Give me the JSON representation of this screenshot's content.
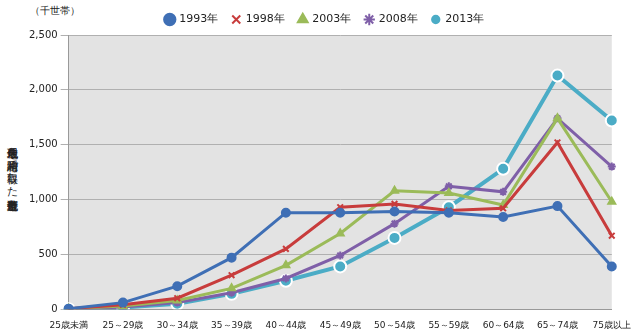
{
  "chart_data": {
    "type": "line",
    "y_label": "現住居敷地を相続・贈与で取得した土地所有世帯数",
    "annotation": "（千世帯）",
    "categories": [
      "25歳未満",
      "25～29歳",
      "30～34歳",
      "35～39歳",
      "40～44歳",
      "45～49歳",
      "50～54歳",
      "55～59歳",
      "60～64歳",
      "65～74歳",
      "75歳以上"
    ],
    "series": [
      {
        "name": "1993年",
        "color": "#3f6fb5",
        "marker": "circle",
        "values": [
          5,
          60,
          210,
          470,
          880,
          880,
          890,
          880,
          840,
          940,
          390
        ]
      },
      {
        "name": "1998年",
        "color": "#c83c3c",
        "marker": "x",
        "values": [
          5,
          40,
          100,
          310,
          550,
          930,
          960,
          900,
          920,
          1520,
          670
        ]
      },
      {
        "name": "2003年",
        "color": "#9bbb59",
        "marker": "triangle",
        "values": [
          5,
          30,
          80,
          190,
          400,
          690,
          1080,
          1060,
          950,
          1740,
          980
        ]
      },
      {
        "name": "2008年",
        "color": "#7f5fa8",
        "marker": "star",
        "values": [
          0,
          20,
          60,
          150,
          280,
          490,
          780,
          1120,
          1070,
          1740,
          1300
        ]
      },
      {
        "name": "2013年",
        "color": "#4bacc6",
        "marker": "circle",
        "values": [
          0,
          15,
          50,
          140,
          260,
          390,
          650,
          930,
          1280,
          2130,
          1720
        ]
      }
    ],
    "ylim": [
      0,
      2500
    ],
    "yticks": [
      0,
      500,
      {
        "value": 1000,
        "label": "1,000"
      },
      {
        "value": 1500,
        "label": "1,500"
      },
      {
        "value": 2000,
        "label": "2,000"
      },
      {
        "value": 2500,
        "label": "2,500"
      }
    ],
    "grid": true,
    "legend": "top"
  }
}
